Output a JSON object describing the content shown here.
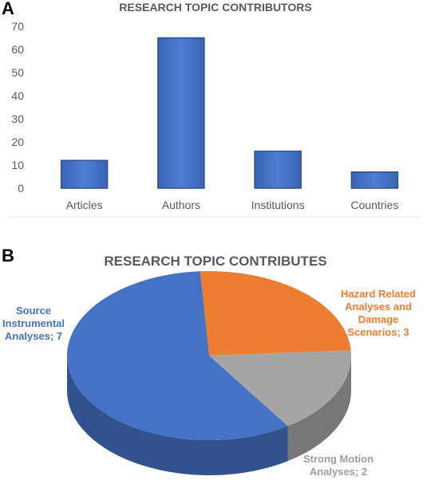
{
  "panel_a": {
    "letter": "A",
    "chart_data": {
      "type": "bar",
      "title": "RESEARCH TOPIC CONTRIBUTORS",
      "categories": [
        "Articles",
        "Authors",
        "Institutions",
        "Countries"
      ],
      "values": [
        12,
        65,
        16,
        7
      ],
      "yticks": [
        "0",
        "10",
        "20",
        "30",
        "40",
        "50",
        "60",
        "70"
      ],
      "ylim": [
        0,
        70
      ],
      "bar_color": "#4472C4",
      "grid": false
    }
  },
  "panel_b": {
    "letter": "B",
    "chart_data": {
      "type": "pie",
      "title": "RESEARCH TOPIC CONTRIBUTES",
      "slices": [
        {
          "name": "Source Instrumental Analyses",
          "value": 7,
          "color": "#4472C4",
          "label_lines": [
            "Source",
            "Instrumental",
            "Analyses; 7"
          ]
        },
        {
          "name": "Hazard Related Analyses and Damage Scenarios",
          "value": 3,
          "color": "#ED7D31",
          "label_lines": [
            "Hazard Related",
            "Analyses and",
            "Damage",
            "Scenarios; 3"
          ]
        },
        {
          "name": "Strong Motion Analyses",
          "value": 2,
          "color": "#A5A5A5",
          "label_lines": [
            "Strong Motion",
            "Analyses; 2"
          ]
        }
      ]
    }
  }
}
